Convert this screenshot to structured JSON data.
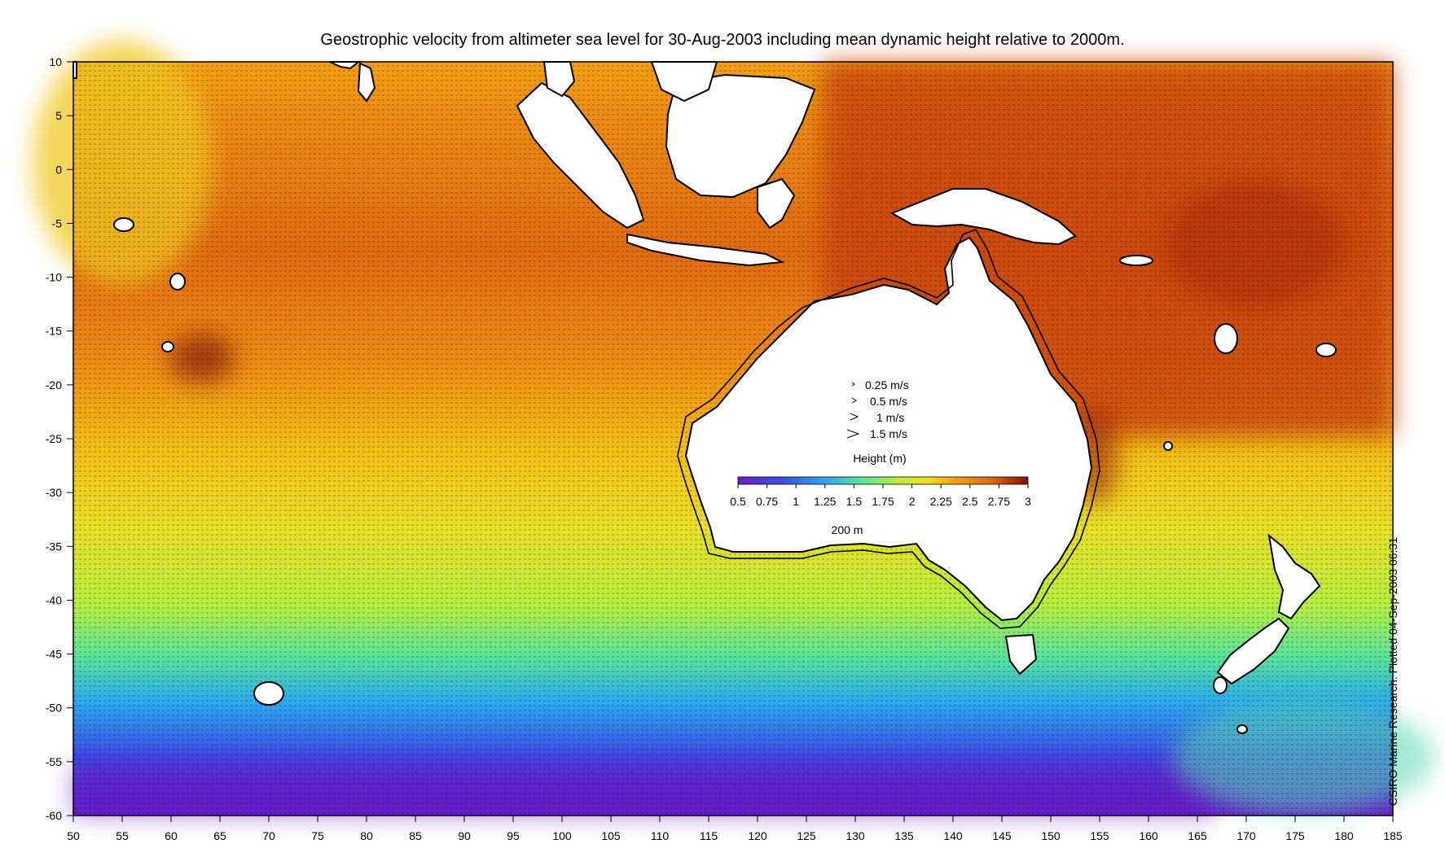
{
  "title": "Geostrophic velocity from altimeter sea level for 30-Aug-2003 including mean dynamic height relative to 2000m.",
  "credit": "CSIRO Marine Research. Plotted 04-Sep-2003 06:31",
  "axes": {
    "x_ticks": [
      "50",
      "55",
      "60",
      "65",
      "70",
      "75",
      "80",
      "85",
      "90",
      "95",
      "100",
      "105",
      "110",
      "115",
      "120",
      "125",
      "130",
      "135",
      "140",
      "145",
      "150",
      "155",
      "160",
      "165",
      "170",
      "175",
      "180",
      "185"
    ],
    "y_ticks": [
      "10",
      "5",
      "0",
      "-5",
      "-10",
      "-15",
      "-20",
      "-25",
      "-30",
      "-35",
      "-40",
      "-45",
      "-50",
      "-55",
      "-60"
    ],
    "lon_range": [
      50,
      185
    ],
    "lat_range": [
      -60,
      10
    ]
  },
  "legend": {
    "arrows": [
      "0.25 m/s",
      "0.5 m/s",
      "1 m/s",
      "1.5 m/s"
    ],
    "height_label": "Height (m)",
    "colorbar_ticks": [
      "0.5",
      "0.75",
      "1",
      "1.25",
      "1.5",
      "1.75",
      "2",
      "2.25",
      "2.5",
      "2.75",
      "3"
    ],
    "colorbar_range": [
      0.5,
      3
    ],
    "isobath_label": "200 m"
  },
  "colors": {
    "low": "#6a1fc8",
    "mid_low": "#2a6ff0",
    "mid": "#b8f040",
    "mid_high": "#f8c020",
    "high": "#d85010",
    "top": "#8a0c0c"
  }
}
